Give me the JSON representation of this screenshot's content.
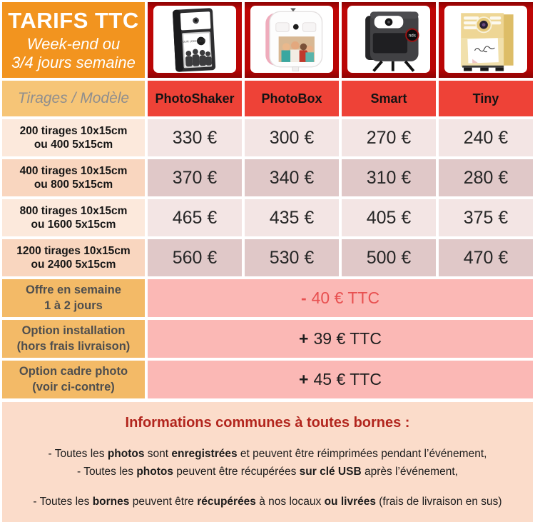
{
  "title_box": {
    "title": "TARIFS TTC",
    "subtitle": "Week-end ou\n3/4 jours semaine"
  },
  "header": {
    "corner_label": "Tirages / Modèle"
  },
  "products": [
    {
      "name": "PhotoShaker",
      "screen_text": "YOUR LOGO HERE"
    },
    {
      "name": "PhotoBox"
    },
    {
      "name": "Smart",
      "logo_text": "nds"
    },
    {
      "name": "Tiny"
    }
  ],
  "price_rows": [
    {
      "label": "200 tirages 10x15cm\nou 400 5x15cm",
      "prices": [
        "330 €",
        "300 €",
        "270 €",
        "240 €"
      ]
    },
    {
      "label": "400 tirages 10x15cm\nou 800 5x15cm",
      "prices": [
        "370 €",
        "340 €",
        "310 €",
        "280 €"
      ]
    },
    {
      "label": "800 tirages 10x15cm\nou 1600 5x15cm",
      "prices": [
        "465 €",
        "435 €",
        "405 €",
        "375 €"
      ]
    },
    {
      "label": "1200 tirages 10x15cm\nou 2400 5x15cm",
      "prices": [
        "560 €",
        "530 €",
        "500 €",
        "470 €"
      ]
    }
  ],
  "offer_rows": [
    {
      "label": "Offre en semaine\n1 à 2 jours",
      "sign": "-",
      "value": "40 € TTC"
    },
    {
      "label": "Option installation\n(hors frais livraison)",
      "sign": "+",
      "value": "39 € TTC"
    },
    {
      "label": "Option cadre photo\n(voir ci-contre)",
      "sign": "+",
      "value": "45 € TTC"
    }
  ],
  "info": {
    "title": "Informations communes à toutes bornes :",
    "lines": [
      [
        {
          "t": "- Toutes les "
        },
        {
          "t": "photos",
          "b": true
        },
        {
          "t": " sont "
        },
        {
          "t": "enregistrées",
          "b": true
        },
        {
          "t": " et peuvent être réimprimées pendant l’événement,"
        }
      ],
      [
        {
          "t": "- Toutes les "
        },
        {
          "t": "photos",
          "b": true
        },
        {
          "t": " peuvent être récupérées "
        },
        {
          "t": "sur clé USB",
          "b": true
        },
        {
          "t": " après l’événement,"
        }
      ],
      [
        {
          "t": "- Toutes les "
        },
        {
          "t": "bornes",
          "b": true
        },
        {
          "t": " peuvent être "
        },
        {
          "t": "récupérées",
          "b": true
        },
        {
          "t": " à nos locaux "
        },
        {
          "t": "ou livrées",
          "b": true
        },
        {
          "t": " (frais de livraison en sus)"
        }
      ]
    ]
  },
  "colors": {
    "accent_orange": "#F2941F",
    "frame_dark_red": "#B90505",
    "header_red": "#EE4237",
    "corner_tan": "#F6C577",
    "row_label_light": "#FCE9DC",
    "row_label_dark": "#F9D6BF",
    "row_value_light": "#F3E5E4",
    "row_value_dark": "#E0C8C8",
    "offer_label_orange": "#F3BA67",
    "offer_pink": "#FBB8B5",
    "offer_red_text": "#E85050",
    "info_bg": "#FBDCCA",
    "info_title_red": "#B2251D"
  }
}
